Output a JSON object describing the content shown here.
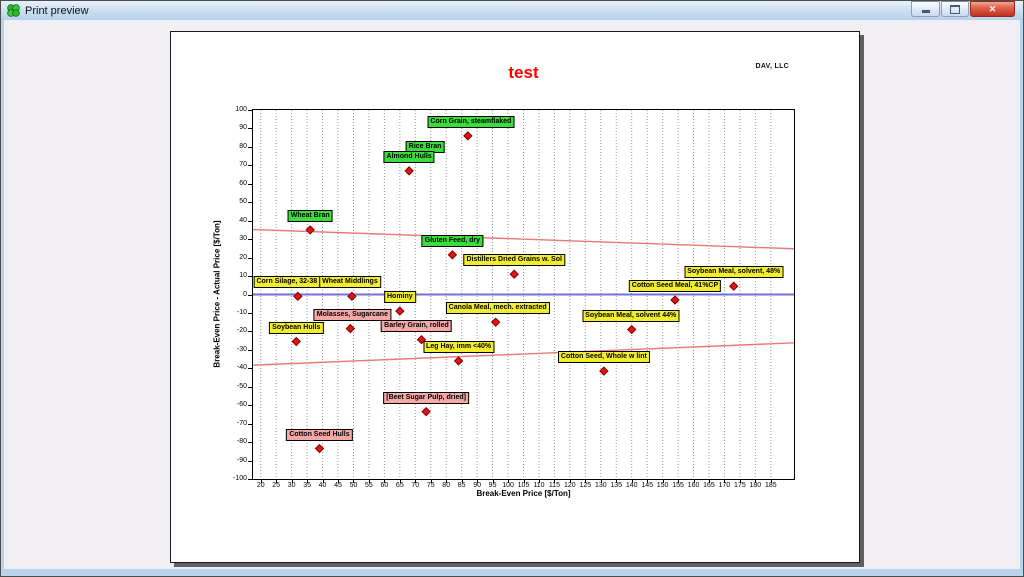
{
  "window": {
    "title": "Print preview",
    "icon": "app-clover-icon",
    "controls": [
      {
        "name": "minimize-button"
      },
      {
        "name": "maximize-button"
      },
      {
        "name": "close-button",
        "glyph": "✕"
      }
    ]
  },
  "page": {
    "company": "DAV, LLC"
  },
  "chart_data": {
    "type": "scatter",
    "title": "test",
    "title_color": "#ff0000",
    "xlabel": "Break-Even Price [$/Ton]",
    "ylabel": "Break-Even Price - Actual Price [$/Ton]",
    "xlim": [
      17.5,
      192.5
    ],
    "ylim": [
      -100,
      100
    ],
    "x_ticks": [
      20,
      25,
      30,
      35,
      40,
      45,
      50,
      55,
      60,
      65,
      70,
      75,
      80,
      85,
      90,
      95,
      100,
      105,
      110,
      115,
      120,
      125,
      130,
      135,
      140,
      145,
      150,
      155,
      160,
      165,
      170,
      175,
      180,
      185
    ],
    "y_ticks": [
      100,
      90,
      80,
      70,
      60,
      50,
      40,
      30,
      20,
      10,
      0,
      -10,
      -20,
      -30,
      -40,
      -50,
      -60,
      -70,
      -80,
      -90,
      -100
    ],
    "grid": "vertical-dashed",
    "grid_color": "#9a9a9a",
    "zero_line": {
      "y": 0,
      "color": "#7070d6"
    },
    "trend_lines": [
      {
        "name": "upper-break-even-band",
        "x1": 17.5,
        "y1": 35.2,
        "x2": 192.5,
        "y2": 24.8,
        "color": "#e87878"
      },
      {
        "name": "lower-break-even-band",
        "x1": 17.5,
        "y1": -38.3,
        "x2": 192.5,
        "y2": -26.2,
        "color": "#e87878"
      }
    ],
    "marker": {
      "shape": "diamond",
      "fill": "#e51212",
      "stroke": "#7c0000"
    },
    "label_colors": {
      "green": "#3ade3a",
      "yellow": "#f2ee2e",
      "pink": "#f6a8a8"
    },
    "points": [
      {
        "label": "Corn Grain, steamflaked",
        "x": 87,
        "y": 86,
        "color": "green",
        "dx": 3
      },
      {
        "label": "Rice Bran",
        "x": 68,
        "y": 67,
        "color": "green",
        "dx": 16,
        "dy": -10,
        "marker_hidden": true
      },
      {
        "label": "Almond Hulls",
        "x": 68,
        "y": 67,
        "color": "green"
      },
      {
        "label": "Wheat Bran",
        "x": 36,
        "y": 35,
        "color": "green"
      },
      {
        "label": "Gluten Feed, dry",
        "x": 82,
        "y": 21.5,
        "color": "green"
      },
      {
        "label": "Distillers Dried Grains w. Sol",
        "x": 102,
        "y": 11,
        "color": "yellow"
      },
      {
        "label": "Soybean Meal, solvent, 48%",
        "x": 173,
        "y": 4.5,
        "color": "yellow"
      },
      {
        "label": "Cotton Seed Meal, 41%CP",
        "x": 154,
        "y": -3,
        "color": "yellow"
      },
      {
        "label": "Corn Silage, 32-38",
        "x": 32,
        "y": -1,
        "color": "yellow",
        "dx": -11
      },
      {
        "label": "Wheat Middlings",
        "x": 49.5,
        "y": -1,
        "color": "yellow",
        "dx": -2
      },
      {
        "label": "Hominy",
        "x": 65,
        "y": -9,
        "color": "yellow"
      },
      {
        "label": "Molasses, Sugarcane",
        "x": 49,
        "y": -18.5,
        "color": "pink",
        "dx": 2
      },
      {
        "label": "Soybean Hulls",
        "x": 31.5,
        "y": -25.5,
        "color": "yellow"
      },
      {
        "label": "Barley Grain, rolled",
        "x": 72,
        "y": -24.5,
        "color": "pink",
        "dx": -5
      },
      {
        "label": "Leg Hay, imm <40%",
        "x": 84,
        "y": -36,
        "color": "yellow"
      },
      {
        "label": "Canola Meal, mech. extracted",
        "x": 96,
        "y": -15,
        "color": "yellow",
        "dx": 2
      },
      {
        "label": "Soybean Meal, solvent 44%",
        "x": 140,
        "y": -19,
        "color": "yellow",
        "dx": -1
      },
      {
        "label": "Cotton Seed, Whole w lint",
        "x": 131,
        "y": -41.5,
        "color": "yellow"
      },
      {
        "label": "[Beet Sugar Pulp, dried]",
        "x": 73.5,
        "y": -63.5,
        "color": "pink"
      },
      {
        "label": "Cotton Seed Hulls",
        "x": 39,
        "y": -83.5,
        "color": "pink"
      }
    ]
  }
}
